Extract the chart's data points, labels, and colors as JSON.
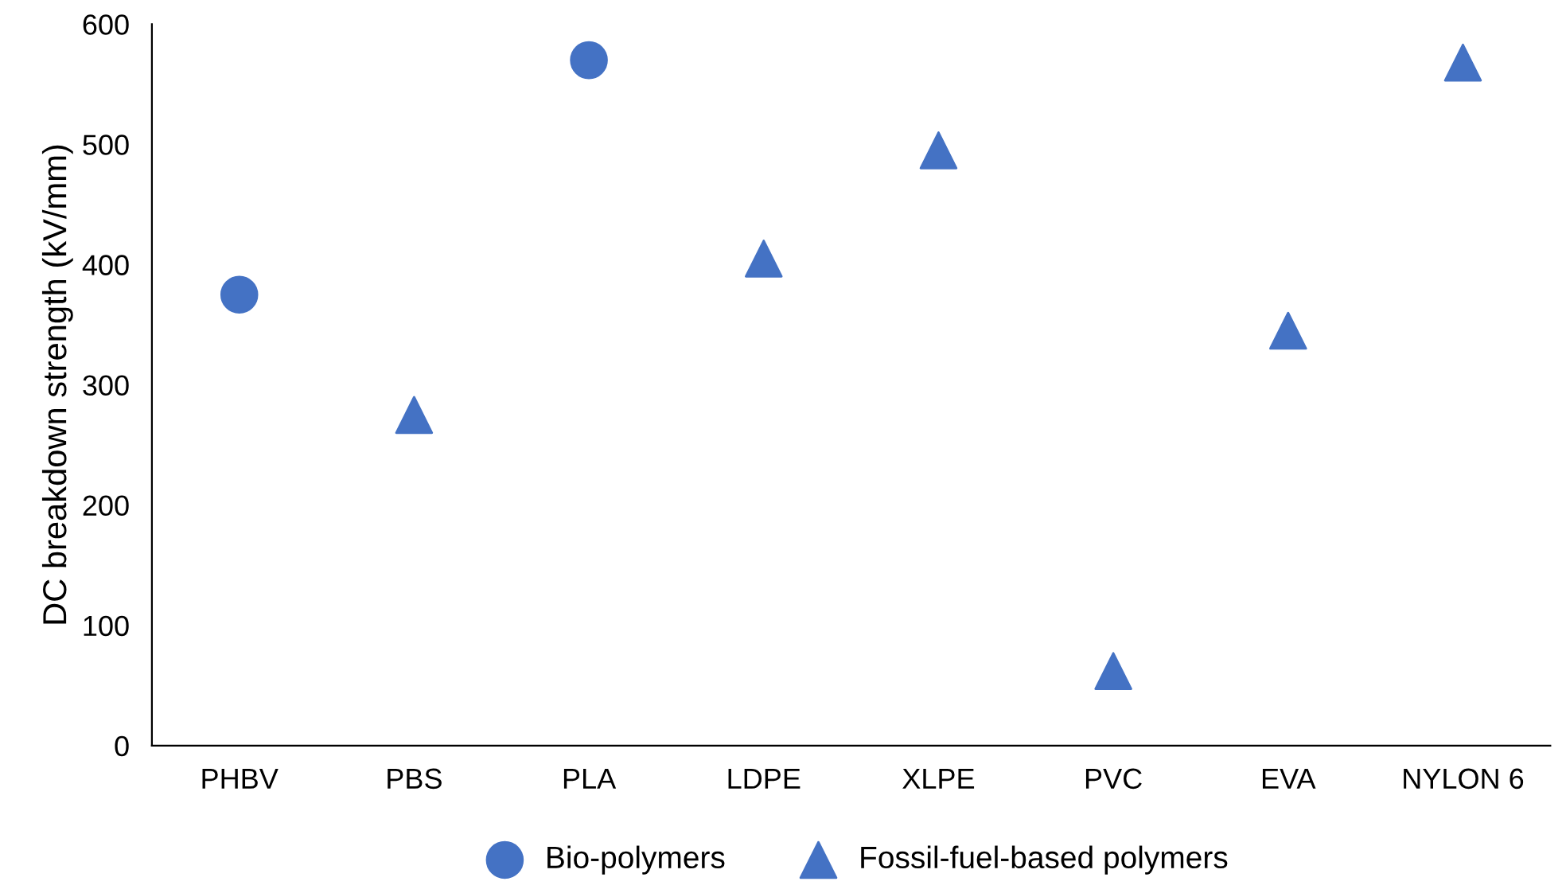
{
  "chart_data": {
    "type": "scatter",
    "ylabel": "DC breakdown strength (kV/mm)",
    "categories": [
      "PHBV",
      "PBS",
      "PLA",
      "LDPE",
      "XLPE",
      "PVC",
      "EVA",
      "NYLON 6"
    ],
    "series": [
      {
        "name": "Bio-polymers",
        "color": "#4472c4",
        "marker": "circle",
        "values": [
          375,
          null,
          570,
          null,
          null,
          null,
          null,
          null
        ]
      },
      {
        "name": "Fossil-fuel-based polymers",
        "color": "#4472c4",
        "marker": "triangle",
        "values": [
          null,
          275,
          null,
          405,
          495,
          62,
          345,
          568
        ]
      }
    ],
    "ylim": [
      0,
      600
    ],
    "yticks": [
      0,
      100,
      200,
      300,
      400,
      500,
      600
    ],
    "grid": false,
    "legend": "bottom"
  }
}
